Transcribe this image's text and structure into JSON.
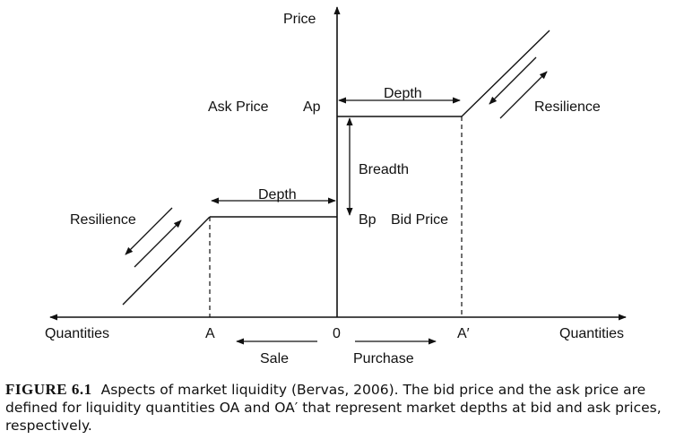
{
  "labels": {
    "price": "Price",
    "ask_price": "Ask Price",
    "ap": "Ap",
    "depth_top": "Depth",
    "resilience_right": "Resilience",
    "breadth": "Breadth",
    "depth_bottom": "Depth",
    "resilience_left": "Resilience",
    "bp": "Bp",
    "bid_price": "Bid Price",
    "quantities_left": "Quantities",
    "a": "A",
    "zero": "0",
    "a_prime": "A′",
    "quantities_right": "Quantities",
    "sale": "Sale",
    "purchase": "Purchase"
  },
  "caption": {
    "figure_number": "FIGURE 6.1",
    "text": "Aspects of market liquidity (Bervas, 2006). The bid price and the ask price are defined for liquidity quantities OA and OA′ that represent market depths at bid and ask prices, respectively."
  }
}
